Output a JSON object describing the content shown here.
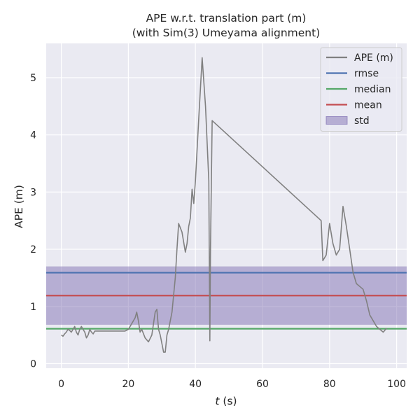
{
  "chart_data": {
    "type": "line",
    "title": "APE w.r.t. translation part (m)",
    "subtitle": "(with Sim(3) Umeyama alignment)",
    "xlabel_var": "t",
    "xlabel_unit": " (s)",
    "ylabel": "APE (m)",
    "xlim": [
      -4.5,
      103
    ],
    "ylim": [
      -0.08,
      5.6
    ],
    "xticks": [
      0,
      20,
      40,
      60,
      80,
      100
    ],
    "yticks": [
      0,
      1,
      2,
      3,
      4,
      5
    ],
    "grid": true,
    "legend_position": "top-right",
    "series": [
      {
        "name": "APE (m)",
        "color": "#808080",
        "x": [
          0.0,
          0.5,
          1.0,
          1.5,
          2.0,
          2.5,
          3.0,
          3.5,
          4.0,
          4.5,
          5.0,
          5.5,
          6.0,
          6.5,
          7.0,
          7.5,
          8.0,
          8.5,
          9.0,
          9.5,
          10.0,
          15.0,
          19.0,
          20.0,
          21.0,
          22.0,
          22.5,
          23.0,
          23.5,
          24.0,
          25.0,
          26.0,
          27.0,
          28.0,
          28.5,
          29.0,
          29.5,
          30.0,
          30.5,
          31.0,
          31.5,
          32.0,
          33.0,
          34.0,
          34.5,
          35.0,
          36.0,
          37.0,
          37.5,
          38.0,
          38.5,
          39.0,
          39.5,
          40.0,
          41.0,
          42.0,
          43.0,
          44.0,
          44.3,
          44.5,
          45.0,
          77.5,
          78.0,
          79.0,
          80.0,
          81.0,
          82.0,
          83.0,
          84.0,
          85.0,
          86.0,
          87.0,
          88.0,
          89.0,
          90.0,
          91.0,
          92.0,
          93.0,
          94.0,
          95.0,
          96.0,
          97.0
        ],
        "y": [
          0.5,
          0.48,
          0.52,
          0.55,
          0.6,
          0.58,
          0.55,
          0.6,
          0.65,
          0.55,
          0.5,
          0.6,
          0.65,
          0.6,
          0.55,
          0.45,
          0.5,
          0.6,
          0.55,
          0.52,
          0.57,
          0.57,
          0.57,
          0.6,
          0.7,
          0.8,
          0.9,
          0.75,
          0.55,
          0.6,
          0.45,
          0.38,
          0.5,
          0.9,
          0.95,
          0.6,
          0.5,
          0.35,
          0.2,
          0.2,
          0.5,
          0.6,
          0.9,
          1.5,
          2.0,
          2.45,
          2.3,
          1.95,
          2.1,
          2.4,
          2.55,
          3.05,
          2.8,
          3.2,
          4.3,
          5.35,
          4.5,
          3.2,
          0.4,
          2.0,
          4.25,
          2.5,
          1.8,
          1.9,
          2.45,
          2.1,
          1.9,
          2.0,
          2.75,
          2.4,
          2.0,
          1.6,
          1.4,
          1.35,
          1.3,
          1.1,
          0.85,
          0.75,
          0.65,
          0.6,
          0.55,
          0.62
        ]
      }
    ],
    "stats": {
      "rmse": 1.59,
      "median": 0.61,
      "mean": 1.19,
      "std": 0.51
    },
    "colors": {
      "rmse": "#4c72b0",
      "median": "#55a868",
      "mean": "#c44e52",
      "std_fill": "#8172b3",
      "plot_bg": "#eaeaf2",
      "grid": "#ffffff"
    },
    "legend": [
      {
        "label": "APE (m)",
        "kind": "line",
        "color": "#808080"
      },
      {
        "label": "rmse",
        "kind": "line",
        "color": "#4c72b0"
      },
      {
        "label": "median",
        "kind": "line",
        "color": "#55a868"
      },
      {
        "label": "mean",
        "kind": "line",
        "color": "#c44e52"
      },
      {
        "label": "std",
        "kind": "patch",
        "color": "#8172b3"
      }
    ]
  }
}
